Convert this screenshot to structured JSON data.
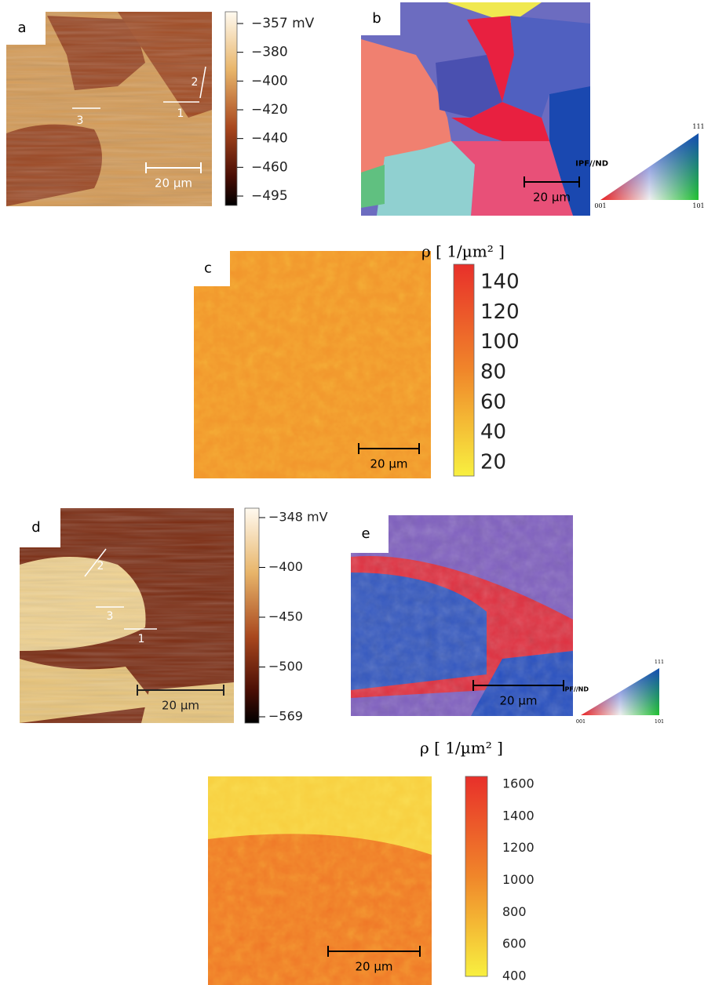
{
  "panels": [
    {
      "label": "a",
      "scale_bar": "20 µm",
      "markers": [
        "1",
        "2",
        "3"
      ],
      "colorbar": {
        "ticks": [
          "−357 mV",
          "−380",
          "−400",
          "−420",
          "−440",
          "−460",
          "−495"
        ]
      }
    },
    {
      "label": "b",
      "scale_bar": "20 µm",
      "legend": {
        "title": "IPF//ND",
        "top": "111",
        "left": "001",
        "right": "101"
      }
    },
    {
      "label": "c",
      "scale_bar": "20 µm",
      "colorbar": {
        "title": "ρ [ 1/µm² ]",
        "ticks": [
          "140",
          "120",
          "100",
          "80",
          "60",
          "40",
          "20"
        ]
      }
    },
    {
      "label": "d",
      "scale_bar": "20 µm",
      "markers": [
        "1",
        "2",
        "3"
      ],
      "colorbar": {
        "ticks": [
          "−348 mV",
          "−400",
          "−450",
          "−500",
          "−569"
        ]
      }
    },
    {
      "label": "e",
      "scale_bar": "20 µm",
      "legend": {
        "title": "IPF//ND",
        "top": "111",
        "left": "001",
        "right": "101"
      }
    },
    {
      "scale_bar": "20 µm",
      "colorbar": {
        "title": "ρ [ 1/µm² ]",
        "ticks": [
          "1600",
          "1400",
          "1200",
          "1000",
          "800",
          "600",
          "400"
        ]
      }
    }
  ]
}
